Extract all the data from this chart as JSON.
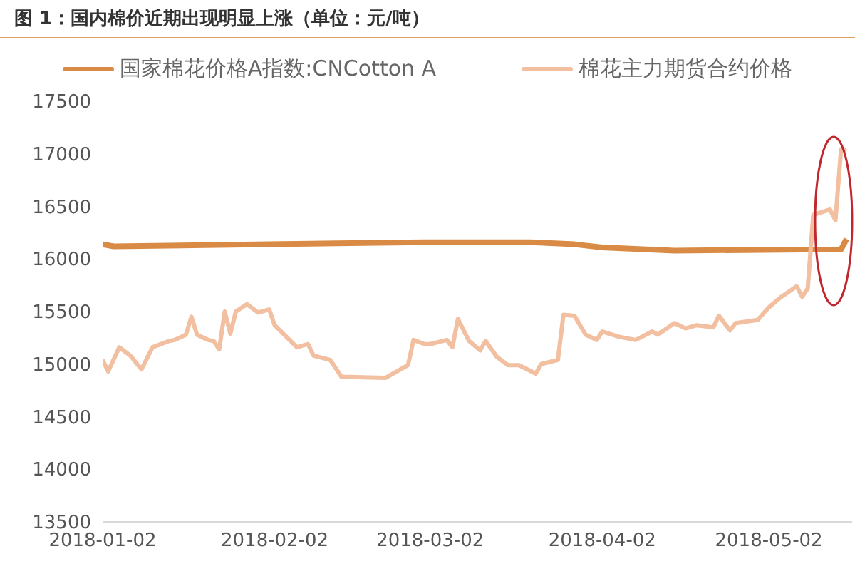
{
  "chart_data": {
    "type": "line",
    "title": "图 1：国内棉价近期出现明显上涨（单位：元/吨）",
    "legend": "top",
    "grid": false,
    "marker": "none",
    "line_style": "solid",
    "xlim": [
      "2018-01-02",
      "2018-05-17"
    ],
    "xticks": [
      "2018-01-02",
      "2018-02-02",
      "2018-03-02",
      "2018-04-02",
      "2018-05-02"
    ],
    "ylim": [
      13500,
      17500
    ],
    "yticks": [
      13500,
      14000,
      14500,
      15000,
      15500,
      16000,
      16500,
      17000,
      17500
    ],
    "series": [
      {
        "name": "国家棉花价格A指数:CNCotton A",
        "color": "#d98b45",
        "x": [
          "2018-01-02",
          "2018-01-04",
          "2018-02-01",
          "2018-03-01",
          "2018-03-20",
          "2018-03-28",
          "2018-04-02",
          "2018-04-15",
          "2018-05-08",
          "2018-05-15",
          "2018-05-16"
        ],
        "values": [
          16140,
          16120,
          16140,
          16160,
          16160,
          16140,
          16110,
          16080,
          16090,
          16090,
          16190
        ]
      },
      {
        "name": "棉花主力期货合约价格",
        "color": "#f2bfa0",
        "x": [
          "2018-01-02",
          "2018-01-03",
          "2018-01-05",
          "2018-01-07",
          "2018-01-09",
          "2018-01-11",
          "2018-01-14",
          "2018-01-15",
          "2018-01-17",
          "2018-01-18",
          "2018-01-19",
          "2018-01-21",
          "2018-01-22",
          "2018-01-23",
          "2018-01-24",
          "2018-01-25",
          "2018-01-26",
          "2018-01-28",
          "2018-01-30",
          "2018-02-01",
          "2018-02-02",
          "2018-02-06",
          "2018-02-08",
          "2018-02-09",
          "2018-02-12",
          "2018-02-14",
          "2018-02-22",
          "2018-02-26",
          "2018-02-27",
          "2018-03-01",
          "2018-03-02",
          "2018-03-05",
          "2018-03-06",
          "2018-03-07",
          "2018-03-09",
          "2018-03-11",
          "2018-03-12",
          "2018-03-14",
          "2018-03-16",
          "2018-03-18",
          "2018-03-21",
          "2018-03-22",
          "2018-03-25",
          "2018-03-26",
          "2018-03-28",
          "2018-03-30",
          "2018-04-01",
          "2018-04-02",
          "2018-04-05",
          "2018-04-08",
          "2018-04-11",
          "2018-04-12",
          "2018-04-15",
          "2018-04-17",
          "2018-04-19",
          "2018-04-22",
          "2018-04-23",
          "2018-04-25",
          "2018-04-26",
          "2018-04-30",
          "2018-05-02",
          "2018-05-04",
          "2018-05-07",
          "2018-05-08",
          "2018-05-09",
          "2018-05-10",
          "2018-05-13",
          "2018-05-14",
          "2018-05-15",
          "2018-05-16"
        ],
        "values": [
          15040,
          14930,
          15160,
          15080,
          14950,
          15160,
          15220,
          15230,
          15280,
          15450,
          15280,
          15230,
          15220,
          15140,
          15500,
          15290,
          15500,
          15570,
          15490,
          15520,
          15370,
          15160,
          15190,
          15080,
          15040,
          14880,
          14870,
          14990,
          15230,
          15190,
          15190,
          15230,
          15160,
          15430,
          15220,
          15130,
          15220,
          15070,
          14990,
          14990,
          14910,
          15000,
          15040,
          15470,
          15460,
          15280,
          15230,
          15310,
          15260,
          15230,
          15310,
          15280,
          15390,
          15340,
          15370,
          15350,
          15460,
          15320,
          15390,
          15420,
          15540,
          15630,
          15740,
          15640,
          15720,
          16420,
          16470,
          16370,
          17040,
          17040
        ]
      }
    ]
  }
}
